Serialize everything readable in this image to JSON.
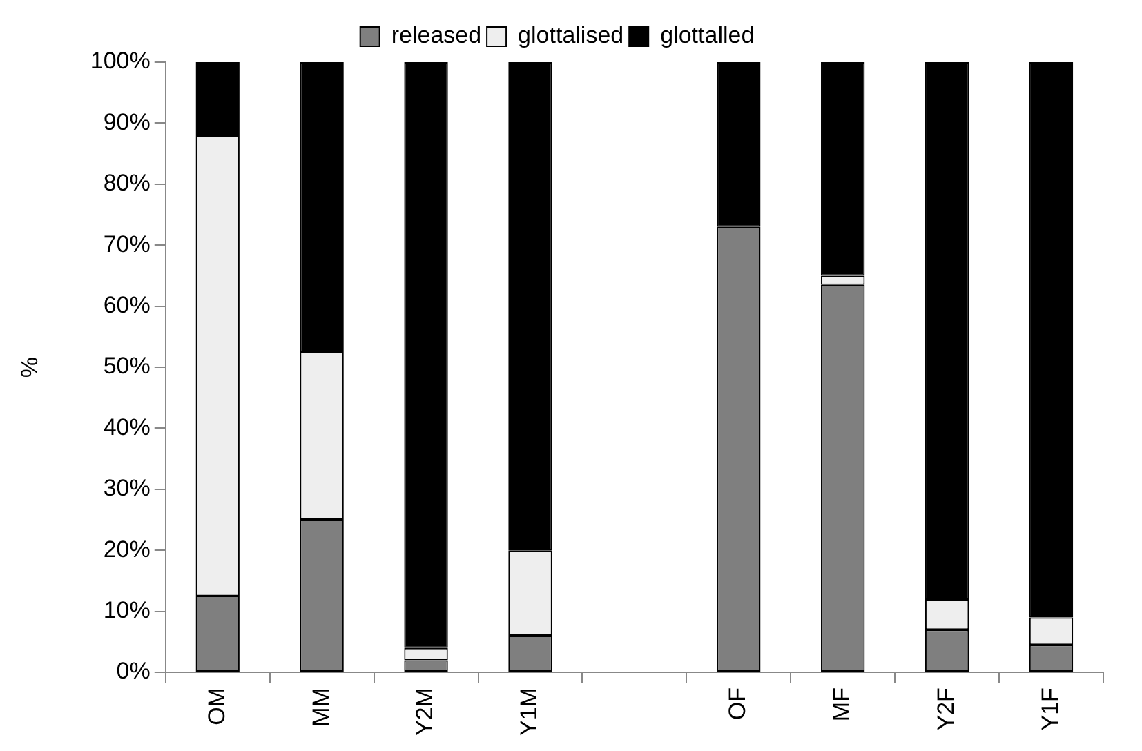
{
  "chart_data": {
    "type": "bar",
    "stacked": true,
    "ylabel": "%",
    "categories": [
      "OM",
      "MM",
      "Y2M",
      "Y1M",
      null,
      "OF",
      "MF",
      "Y2F",
      "Y1F"
    ],
    "series": [
      {
        "name": "released",
        "color": "#7f7f7f",
        "values": [
          12.5,
          25,
          2,
          6,
          null,
          73,
          63.5,
          7,
          4.5
        ]
      },
      {
        "name": "glottalised",
        "color": "#eeeeee",
        "values": [
          75.5,
          27.5,
          2,
          14,
          null,
          0,
          1.5,
          5,
          4.5
        ]
      },
      {
        "name": "glottalled",
        "color": "#000000",
        "values": [
          12,
          47.5,
          96,
          80,
          null,
          27,
          35,
          88,
          91
        ]
      }
    ],
    "ylim": [
      0,
      100
    ],
    "yticks": [
      {
        "value": 0,
        "label": "0%"
      },
      {
        "value": 10,
        "label": "10%"
      },
      {
        "value": 20,
        "label": "20%"
      },
      {
        "value": 30,
        "label": "30%"
      },
      {
        "value": 40,
        "label": "40%"
      },
      {
        "value": 50,
        "label": "50%"
      },
      {
        "value": 60,
        "label": "60%"
      },
      {
        "value": 70,
        "label": "70%"
      },
      {
        "value": 80,
        "label": "80%"
      },
      {
        "value": 90,
        "label": "90%"
      },
      {
        "value": 100,
        "label": "100%"
      }
    ],
    "grid": false,
    "legend": "top"
  }
}
